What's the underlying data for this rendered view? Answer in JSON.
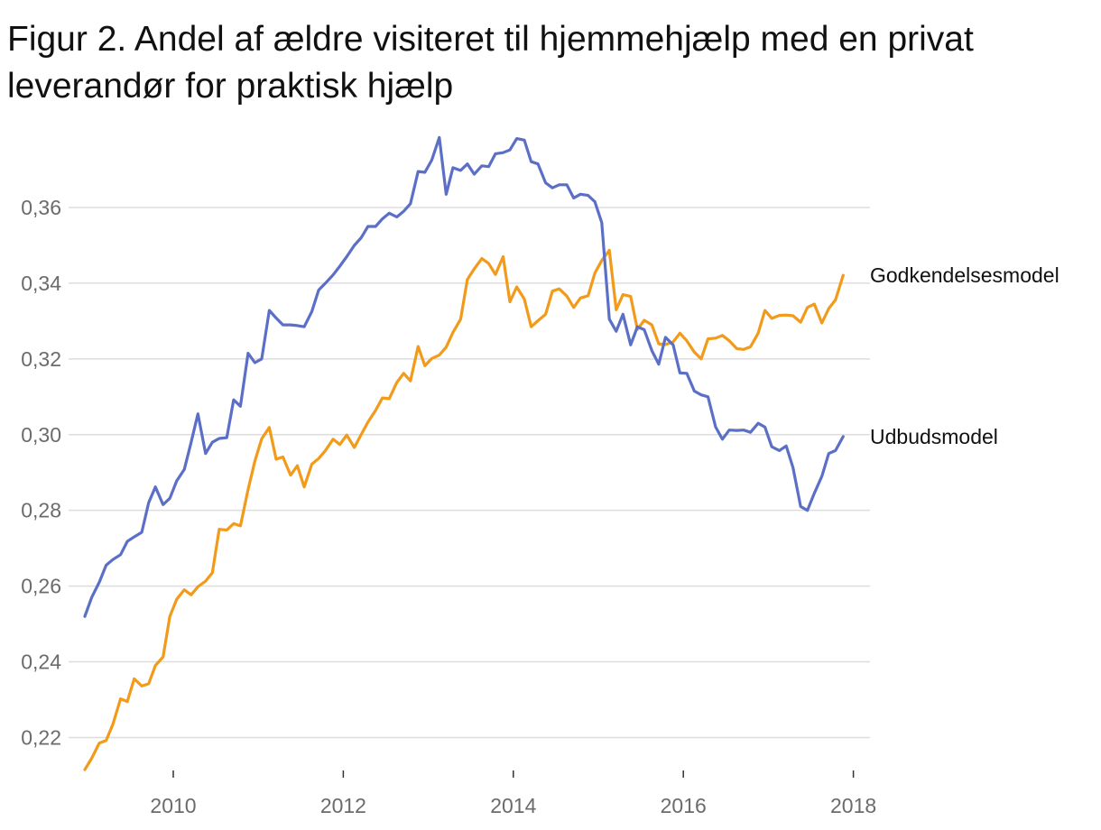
{
  "chart_data": {
    "type": "line",
    "title": "Figur 2. Andel af ældre visiteret til hjemmehjælp med en privat leverandør for praktisk hjælp",
    "xlabel": "",
    "ylabel": "",
    "xlim": [
      2008.9,
      2018.1
    ],
    "ylim": [
      0.21,
      0.38
    ],
    "x_ticks": [
      2010,
      2012,
      2014,
      2016,
      2018
    ],
    "x_tick_labels": [
      "2010",
      "2012",
      "2014",
      "2016",
      "2018"
    ],
    "y_ticks": [
      0.22,
      0.24,
      0.26,
      0.28,
      0.3,
      0.32,
      0.34,
      0.36
    ],
    "y_tick_labels": [
      "0,22",
      "0,24",
      "0,26",
      "0,28",
      "0,30",
      "0,32",
      "0,34",
      "0,36"
    ],
    "grid": "horizontal",
    "legend": "direct labels at line ends (right)",
    "series": [
      {
        "name": "Godkendelsesmodel",
        "color": "#f29a1a",
        "x": [
          2008.96,
          2009.04,
          2009.13,
          2009.21,
          2009.29,
          2009.38,
          2009.46,
          2009.54,
          2009.63,
          2009.71,
          2009.79,
          2009.88,
          2009.96,
          2010.04,
          2010.13,
          2010.21,
          2010.29,
          2010.38,
          2010.46,
          2010.54,
          2010.63,
          2010.71,
          2010.79,
          2010.88,
          2010.96,
          2011.04,
          2011.13,
          2011.21,
          2011.29,
          2011.38,
          2011.46,
          2011.54,
          2011.63,
          2011.71,
          2011.79,
          2011.88,
          2011.96,
          2012.04,
          2012.13,
          2012.21,
          2012.29,
          2012.38,
          2012.46,
          2012.54,
          2012.63,
          2012.71,
          2012.79,
          2012.88,
          2012.96,
          2013.04,
          2013.13,
          2013.21,
          2013.29,
          2013.38,
          2013.46,
          2013.54,
          2013.63,
          2013.71,
          2013.79,
          2013.88,
          2013.96,
          2014.04,
          2014.13,
          2014.21,
          2014.29,
          2014.38,
          2014.46,
          2014.54,
          2014.63,
          2014.71,
          2014.79,
          2014.88,
          2014.96,
          2015.04,
          2015.13,
          2015.21,
          2015.29,
          2015.38,
          2015.46,
          2015.54,
          2015.63,
          2015.71,
          2015.79,
          2015.88,
          2015.96,
          2016.04,
          2016.13,
          2016.21,
          2016.29,
          2016.38,
          2016.46,
          2016.54,
          2016.63,
          2016.71,
          2016.79,
          2016.88,
          2016.96,
          2017.04,
          2017.13,
          2017.21,
          2017.29,
          2017.38,
          2017.46,
          2017.54,
          2017.63,
          2017.71,
          2017.79,
          2017.88
        ],
        "values": [
          0.2115,
          0.2145,
          0.2185,
          0.2192,
          0.2235,
          0.2302,
          0.2295,
          0.2355,
          0.2336,
          0.2342,
          0.239,
          0.2413,
          0.252,
          0.2565,
          0.259,
          0.2577,
          0.2598,
          0.2613,
          0.2635,
          0.275,
          0.2748,
          0.2765,
          0.2759,
          0.2855,
          0.293,
          0.2989,
          0.3019,
          0.2935,
          0.2941,
          0.2893,
          0.2918,
          0.2862,
          0.2922,
          0.2937,
          0.2958,
          0.2988,
          0.2974,
          0.2999,
          0.2966,
          0.3,
          0.3033,
          0.3064,
          0.3097,
          0.3095,
          0.3138,
          0.3162,
          0.3142,
          0.3233,
          0.3182,
          0.3201,
          0.321,
          0.3231,
          0.327,
          0.3305,
          0.341,
          0.3438,
          0.3465,
          0.3452,
          0.3423,
          0.347,
          0.3351,
          0.339,
          0.3358,
          0.3285,
          0.3301,
          0.3318,
          0.3379,
          0.3385,
          0.3366,
          0.3336,
          0.3361,
          0.3367,
          0.3427,
          0.346,
          0.3487,
          0.333,
          0.337,
          0.3365,
          0.3278,
          0.3302,
          0.329,
          0.324,
          0.3238,
          0.3245,
          0.3268,
          0.3248,
          0.3218,
          0.32,
          0.3253,
          0.3255,
          0.3262,
          0.3248,
          0.3227,
          0.3225,
          0.3232,
          0.3268,
          0.3328,
          0.3307,
          0.3315,
          0.3316,
          0.3314,
          0.3297,
          0.3336,
          0.3345,
          0.3295,
          0.3333,
          0.3356,
          0.3421
        ]
      },
      {
        "name": "Udbudsmodel",
        "color": "#5b6fc7",
        "x": [
          2008.96,
          2009.04,
          2009.13,
          2009.21,
          2009.29,
          2009.38,
          2009.46,
          2009.54,
          2009.63,
          2009.71,
          2009.79,
          2009.88,
          2009.96,
          2010.04,
          2010.13,
          2010.21,
          2010.29,
          2010.38,
          2010.46,
          2010.54,
          2010.63,
          2010.71,
          2010.79,
          2010.88,
          2010.96,
          2011.04,
          2011.13,
          2011.21,
          2011.29,
          2011.38,
          2011.46,
          2011.54,
          2011.63,
          2011.71,
          2011.79,
          2011.88,
          2011.96,
          2012.04,
          2012.13,
          2012.21,
          2012.29,
          2012.38,
          2012.46,
          2012.54,
          2012.63,
          2012.71,
          2012.79,
          2012.88,
          2012.96,
          2013.04,
          2013.13,
          2013.21,
          2013.29,
          2013.38,
          2013.46,
          2013.54,
          2013.63,
          2013.71,
          2013.79,
          2013.88,
          2013.96,
          2014.04,
          2014.13,
          2014.21,
          2014.29,
          2014.38,
          2014.46,
          2014.54,
          2014.63,
          2014.71,
          2014.79,
          2014.88,
          2014.96,
          2015.04,
          2015.13,
          2015.21,
          2015.29,
          2015.38,
          2015.46,
          2015.54,
          2015.63,
          2015.71,
          2015.79,
          2015.88,
          2015.96,
          2016.04,
          2016.13,
          2016.21,
          2016.29,
          2016.38,
          2016.46,
          2016.54,
          2016.63,
          2016.71,
          2016.79,
          2016.88,
          2016.96,
          2017.04,
          2017.13,
          2017.21,
          2017.29,
          2017.38,
          2017.46,
          2017.54,
          2017.63,
          2017.71,
          2017.79,
          2017.88
        ],
        "values": [
          0.252,
          0.257,
          0.261,
          0.2655,
          0.267,
          0.2683,
          0.2718,
          0.273,
          0.2742,
          0.282,
          0.2862,
          0.2815,
          0.2832,
          0.2878,
          0.2908,
          0.298,
          0.3055,
          0.295,
          0.298,
          0.299,
          0.2992,
          0.3092,
          0.3075,
          0.3215,
          0.319,
          0.32,
          0.3328,
          0.3308,
          0.329,
          0.329,
          0.3288,
          0.3285,
          0.3325,
          0.3382,
          0.34,
          0.3422,
          0.3445,
          0.347,
          0.35,
          0.352,
          0.355,
          0.355,
          0.357,
          0.3585,
          0.3575,
          0.359,
          0.361,
          0.3695,
          0.3693,
          0.3725,
          0.3785,
          0.3635,
          0.3705,
          0.3698,
          0.3715,
          0.3688,
          0.371,
          0.3708,
          0.3742,
          0.3745,
          0.3752,
          0.3782,
          0.3778,
          0.3721,
          0.3715,
          0.3665,
          0.3652,
          0.366,
          0.366,
          0.3625,
          0.3635,
          0.3632,
          0.3615,
          0.356,
          0.3305,
          0.3273,
          0.3318,
          0.3237,
          0.3285,
          0.3277,
          0.3222,
          0.3186,
          0.3257,
          0.3237,
          0.3163,
          0.3162,
          0.3115,
          0.3105,
          0.31,
          0.302,
          0.2988,
          0.3012,
          0.3011,
          0.3012,
          0.3006,
          0.303,
          0.302,
          0.2968,
          0.2958,
          0.297,
          0.2913,
          0.281,
          0.28,
          0.2845,
          0.289,
          0.295,
          0.2958,
          0.2995
        ]
      }
    ]
  }
}
